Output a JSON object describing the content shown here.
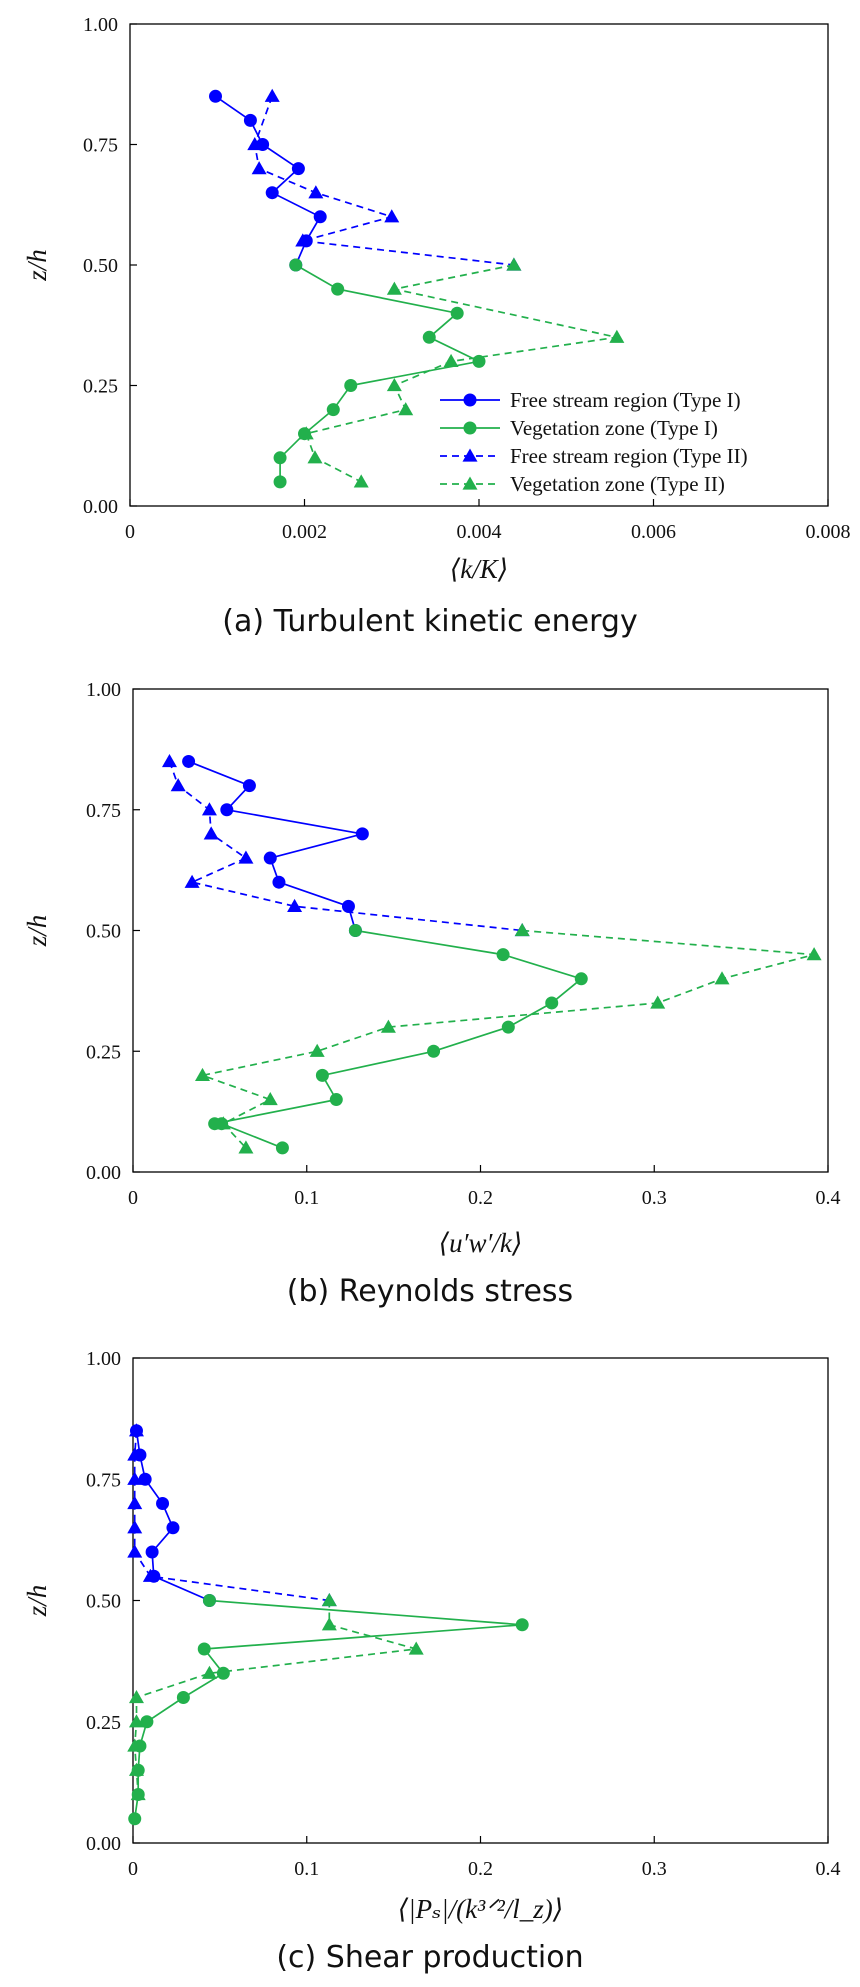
{
  "chart_data": [
    {
      "type": "line",
      "caption": "(a) Turbulent kinetic energy",
      "xlabel": "⟨k/K⟩",
      "ylabel": "z/h",
      "xlim": [
        0,
        0.008
      ],
      "ylim": [
        0,
        1.0
      ],
      "xticks": [
        "0",
        "0.002",
        "0.004",
        "0.006",
        "0.008"
      ],
      "yticks": [
        "0.00",
        "0.25",
        "0.50",
        "0.75",
        "1.00"
      ],
      "legend_position": "bottom-right",
      "series": [
        {
          "name": "Free stream region (Type I)",
          "color": "#0000ff",
          "marker": "circle",
          "dash": false,
          "points": [
            [
              0.00098,
              0.85
            ],
            [
              0.00138,
              0.8
            ],
            [
              0.00152,
              0.75
            ],
            [
              0.00193,
              0.7
            ],
            [
              0.00163,
              0.65
            ],
            [
              0.00218,
              0.6
            ],
            [
              0.00202,
              0.55
            ],
            [
              0.0019,
              0.5
            ]
          ]
        },
        {
          "name": "Vegetation zone (Type I)",
          "color": "#22b04c",
          "marker": "circle",
          "dash": false,
          "points": [
            [
              0.0019,
              0.5
            ],
            [
              0.00238,
              0.45
            ],
            [
              0.00375,
              0.4
            ],
            [
              0.00343,
              0.35
            ],
            [
              0.004,
              0.3
            ],
            [
              0.00253,
              0.25
            ],
            [
              0.00233,
              0.2
            ],
            [
              0.002,
              0.15
            ],
            [
              0.00172,
              0.1
            ],
            [
              0.00172,
              0.05
            ]
          ]
        },
        {
          "name": "Free stream region (Type II)",
          "color": "#0000ff",
          "marker": "triangle",
          "dash": true,
          "points": [
            [
              0.00163,
              0.85
            ],
            [
              0.00143,
              0.75
            ],
            [
              0.00148,
              0.7
            ],
            [
              0.00213,
              0.65
            ],
            [
              0.003,
              0.6
            ],
            [
              0.00198,
              0.55
            ],
            [
              0.0044,
              0.5
            ]
          ]
        },
        {
          "name": "Vegetation zone (Type II)",
          "color": "#22b04c",
          "marker": "triangle",
          "dash": true,
          "points": [
            [
              0.0044,
              0.5
            ],
            [
              0.00303,
              0.45
            ],
            [
              0.00558,
              0.35
            ],
            [
              0.00368,
              0.3
            ],
            [
              0.00303,
              0.25
            ],
            [
              0.00316,
              0.2
            ],
            [
              0.00202,
              0.15
            ],
            [
              0.00212,
              0.1
            ],
            [
              0.00265,
              0.05
            ]
          ]
        }
      ]
    },
    {
      "type": "line",
      "caption": "(b) Reynolds stress",
      "xlabel": "⟨u′w′/k⟩",
      "ylabel": "z/h",
      "xlim": [
        0,
        0.4
      ],
      "ylim": [
        0,
        1.0
      ],
      "xticks": [
        "0",
        "0.1",
        "0.2",
        "0.3",
        "0.4"
      ],
      "yticks": [
        "0.00",
        "0.25",
        "0.50",
        "0.75",
        "1.00"
      ],
      "series": [
        {
          "name": "Free stream region (Type I)",
          "color": "#0000ff",
          "marker": "circle",
          "dash": false,
          "points": [
            [
              0.032,
              0.85
            ],
            [
              0.067,
              0.8
            ],
            [
              0.054,
              0.75
            ],
            [
              0.132,
              0.7
            ],
            [
              0.079,
              0.65
            ],
            [
              0.084,
              0.6
            ],
            [
              0.124,
              0.55
            ],
            [
              0.128,
              0.5
            ]
          ]
        },
        {
          "name": "Vegetation zone (Type I)",
          "color": "#22b04c",
          "marker": "circle",
          "dash": false,
          "points": [
            [
              0.128,
              0.5
            ],
            [
              0.213,
              0.45
            ],
            [
              0.258,
              0.4
            ],
            [
              0.241,
              0.35
            ],
            [
              0.216,
              0.3
            ],
            [
              0.173,
              0.25
            ],
            [
              0.109,
              0.2
            ],
            [
              0.117,
              0.15
            ],
            [
              0.047,
              0.1
            ],
            [
              0.051,
              0.1
            ],
            [
              0.086,
              0.05
            ]
          ]
        },
        {
          "name": "Free stream region (Type II)",
          "color": "#0000ff",
          "marker": "triangle",
          "dash": true,
          "points": [
            [
              0.021,
              0.85
            ],
            [
              0.026,
              0.8
            ],
            [
              0.044,
              0.75
            ],
            [
              0.045,
              0.7
            ],
            [
              0.065,
              0.65
            ],
            [
              0.034,
              0.6
            ],
            [
              0.093,
              0.55
            ],
            [
              0.224,
              0.5
            ]
          ]
        },
        {
          "name": "Vegetation zone (Type II)",
          "color": "#22b04c",
          "marker": "triangle",
          "dash": true,
          "points": [
            [
              0.224,
              0.5
            ],
            [
              0.392,
              0.45
            ],
            [
              0.339,
              0.4
            ],
            [
              0.302,
              0.35
            ],
            [
              0.147,
              0.3
            ],
            [
              0.106,
              0.25
            ],
            [
              0.04,
              0.2
            ],
            [
              0.079,
              0.15
            ],
            [
              0.052,
              0.1
            ],
            [
              0.065,
              0.05
            ]
          ]
        }
      ]
    },
    {
      "type": "line",
      "caption": "(c) Shear production",
      "xlabel": "⟨|Pₛ|/(k³ᐟ²/l_z)⟩",
      "ylabel": "z/h",
      "xlim": [
        0,
        0.4
      ],
      "ylim": [
        0,
        1.0
      ],
      "xticks": [
        "0",
        "0.1",
        "0.2",
        "0.3",
        "0.4"
      ],
      "yticks": [
        "0.00",
        "0.25",
        "0.50",
        "0.75",
        "1.00"
      ],
      "series": [
        {
          "name": "Free stream region (Type I)",
          "color": "#0000ff",
          "marker": "circle",
          "dash": false,
          "points": [
            [
              0.002,
              0.85
            ],
            [
              0.004,
              0.8
            ],
            [
              0.007,
              0.75
            ],
            [
              0.017,
              0.7
            ],
            [
              0.023,
              0.65
            ],
            [
              0.011,
              0.6
            ],
            [
              0.012,
              0.55
            ],
            [
              0.044,
              0.5
            ]
          ]
        },
        {
          "name": "Vegetation zone (Type I)",
          "color": "#22b04c",
          "marker": "circle",
          "dash": false,
          "points": [
            [
              0.044,
              0.5
            ],
            [
              0.224,
              0.45
            ],
            [
              0.041,
              0.4
            ],
            [
              0.052,
              0.35
            ],
            [
              0.029,
              0.3
            ],
            [
              0.008,
              0.25
            ],
            [
              0.004,
              0.2
            ],
            [
              0.003,
              0.15
            ],
            [
              0.003,
              0.1
            ],
            [
              0.001,
              0.05
            ]
          ]
        },
        {
          "name": "Free stream region (Type II)",
          "color": "#0000ff",
          "marker": "triangle",
          "dash": true,
          "points": [
            [
              0.002,
              0.85
            ],
            [
              0.001,
              0.8
            ],
            [
              0.001,
              0.75
            ],
            [
              0.001,
              0.7
            ],
            [
              0.001,
              0.65
            ],
            [
              0.001,
              0.6
            ],
            [
              0.01,
              0.55
            ],
            [
              0.113,
              0.5
            ]
          ]
        },
        {
          "name": "Vegetation zone (Type II)",
          "color": "#22b04c",
          "marker": "triangle",
          "dash": true,
          "points": [
            [
              0.113,
              0.5
            ],
            [
              0.113,
              0.45
            ],
            [
              0.163,
              0.4
            ],
            [
              0.044,
              0.35
            ],
            [
              0.002,
              0.3
            ],
            [
              0.002,
              0.25
            ],
            [
              0.001,
              0.2
            ],
            [
              0.002,
              0.15
            ],
            [
              0.003,
              0.1
            ]
          ]
        }
      ]
    }
  ]
}
